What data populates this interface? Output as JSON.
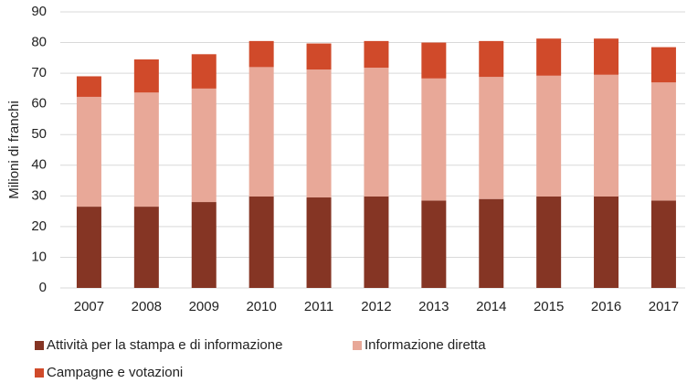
{
  "chart_data": {
    "type": "stacked_bar",
    "y_label": "Milioni di franchi",
    "categories": [
      "2007",
      "2008",
      "2009",
      "2010",
      "2011",
      "2012",
      "2013",
      "2014",
      "2015",
      "2016",
      "2017"
    ],
    "series": [
      {
        "name": "Attività per la stampa e di informazione",
        "color": "#853524",
        "values": [
          26.5,
          26.5,
          28,
          29.8,
          29.5,
          29.8,
          28.5,
          29,
          29.8,
          29.8,
          28.5
        ]
      },
      {
        "name": "Informazione diretta",
        "color": "#e8a898",
        "values": [
          35.8,
          37.2,
          37,
          42.2,
          41.7,
          42,
          39.8,
          39.8,
          39.4,
          39.7,
          38.5
        ]
      },
      {
        "name": "Campagne e votazioni",
        "color": "#d04a2a",
        "values": [
          6.7,
          10.8,
          11.2,
          8.5,
          8.5,
          8.7,
          11.7,
          11.7,
          12.1,
          11.8,
          11.5
        ]
      }
    ],
    "ylim": [
      0,
      90
    ],
    "yticks": [
      0,
      10,
      20,
      30,
      40,
      50,
      60,
      70,
      80,
      90
    ],
    "grid": true
  }
}
